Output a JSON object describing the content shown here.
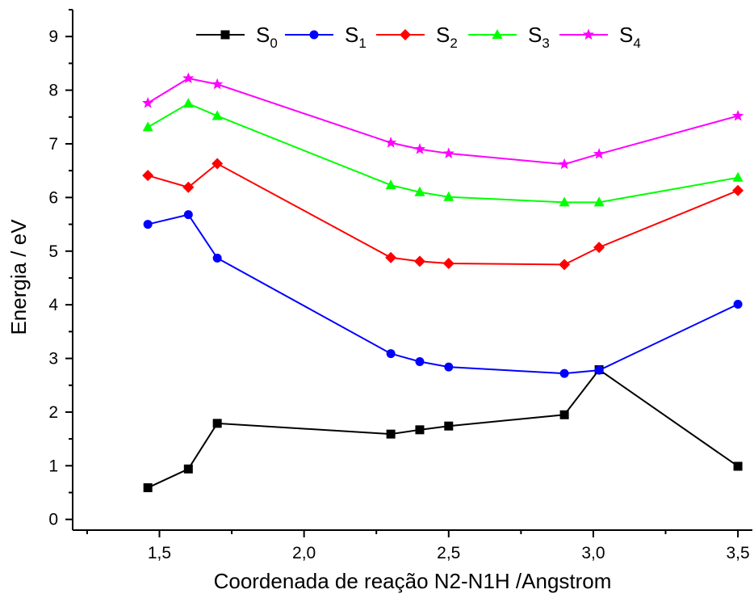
{
  "chart_data": {
    "type": "line",
    "title": "",
    "xlabel": "Coordenada de reação N2-N1H /Angstrom",
    "ylabel": "Energia / eV",
    "xlim": [
      1.2,
      3.55
    ],
    "ylim": [
      -0.2,
      9.5
    ],
    "xticks": [
      1.5,
      2.0,
      2.5,
      3.0,
      3.5
    ],
    "xtick_labels": [
      "1,5",
      "2,0",
      "2,5",
      "3,0",
      "3,5"
    ],
    "yticks": [
      0,
      1,
      2,
      3,
      4,
      5,
      6,
      7,
      8,
      9
    ],
    "ytick_labels": [
      "0",
      "1",
      "2",
      "3",
      "4",
      "5",
      "6",
      "7",
      "8",
      "9"
    ],
    "grid": false,
    "legend_position": "top-center",
    "x": [
      1.46,
      1.6,
      1.7,
      2.3,
      2.4,
      2.5,
      2.9,
      3.02,
      3.5
    ],
    "series": [
      {
        "name": "S",
        "subscript": "0",
        "color": "#000000",
        "marker": "square",
        "values": [
          0.59,
          0.94,
          1.79,
          1.59,
          1.67,
          1.74,
          1.95,
          2.79,
          0.99
        ]
      },
      {
        "name": "S",
        "subscript": "1",
        "color": "#0000ff",
        "marker": "circle",
        "values": [
          5.5,
          5.68,
          4.87,
          3.09,
          2.94,
          2.84,
          2.72,
          2.78,
          4.01
        ]
      },
      {
        "name": "S",
        "subscript": "2",
        "color": "#ff0000",
        "marker": "diamond",
        "values": [
          6.41,
          6.19,
          6.63,
          4.88,
          4.81,
          4.77,
          4.75,
          5.07,
          6.13
        ]
      },
      {
        "name": "S",
        "subscript": "3",
        "color": "#00ff00",
        "marker": "triangle",
        "values": [
          7.31,
          7.75,
          7.52,
          6.23,
          6.1,
          6.01,
          5.91,
          5.91,
          6.37
        ]
      },
      {
        "name": "S",
        "subscript": "4",
        "color": "#ff00ff",
        "marker": "star",
        "values": [
          7.76,
          8.22,
          8.11,
          7.02,
          6.9,
          6.82,
          6.62,
          6.81,
          7.52
        ]
      }
    ]
  }
}
